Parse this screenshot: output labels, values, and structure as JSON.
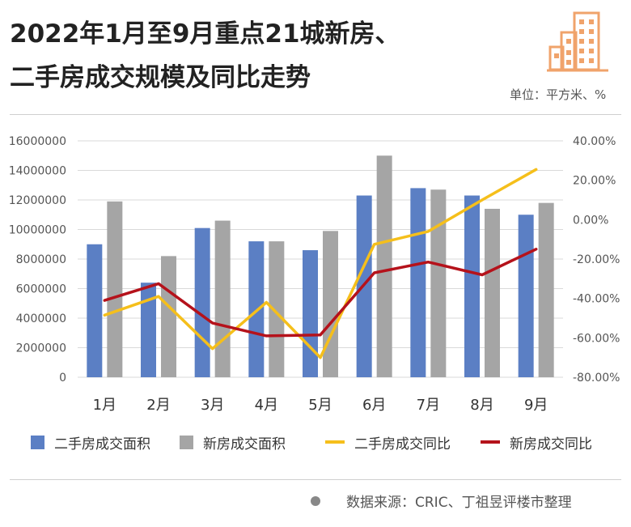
{
  "header": {
    "title_line1": "2022年1月至9月重点21城新房、",
    "title_line2": "二手房成交规模及同比走势",
    "unit": "单位：平方米、%"
  },
  "source": "数据来源：CRIC、丁祖昱评楼市整理",
  "colors": {
    "second_hand_area": "#5b7fc4",
    "new_area": "#a5a5a5",
    "second_hand_yoy": "#f5bf1b",
    "new_yoy": "#b5121b",
    "logo": "#f0a36b"
  },
  "chart_data": {
    "type": "bar",
    "categories": [
      "1月",
      "2月",
      "3月",
      "4月",
      "5月",
      "6月",
      "7月",
      "8月",
      "9月"
    ],
    "series": [
      {
        "name": "二手房成交面积",
        "kind": "bar",
        "axis": "left",
        "values": [
          9000000,
          6400000,
          10100000,
          9200000,
          8600000,
          12300000,
          12800000,
          12300000,
          11000000
        ]
      },
      {
        "name": "新房成交面积",
        "kind": "bar",
        "axis": "left",
        "values": [
          11900000,
          8200000,
          10600000,
          9200000,
          9900000,
          15000000,
          12700000,
          11400000,
          11800000
        ]
      },
      {
        "name": "二手房成交同比",
        "kind": "line",
        "axis": "right",
        "values": [
          -48.5,
          -39,
          -65.5,
          -42,
          -70,
          -12.5,
          -6,
          10,
          25.5
        ]
      },
      {
        "name": "新房成交同比",
        "kind": "line",
        "axis": "right",
        "values": [
          -41,
          -32.5,
          -52.5,
          -59,
          -58.5,
          -27,
          -21.5,
          -28,
          -15
        ]
      }
    ],
    "y_left": {
      "min": 0,
      "max": 16000000,
      "ticks": [
        "0",
        "2000000",
        "4000000",
        "6000000",
        "8000000",
        "10000000",
        "12000000",
        "14000000",
        "16000000"
      ]
    },
    "y_right": {
      "min": -80,
      "max": 40,
      "ticks": [
        "-80.00%",
        "-60.00%",
        "-40.00%",
        "-20.00%",
        "0.00%",
        "20.00%",
        "40.00%"
      ]
    },
    "grid": true,
    "legend_position": "bottom"
  }
}
